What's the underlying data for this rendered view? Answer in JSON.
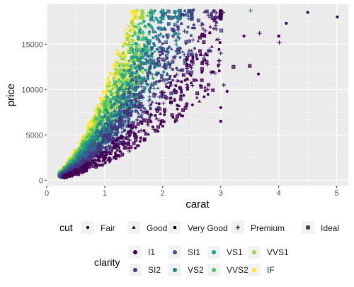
{
  "chart_data": {
    "type": "scatter",
    "xlabel": "carat",
    "ylabel": "price",
    "xlim": [
      0,
      5.2
    ],
    "ylim": [
      -600,
      19400
    ],
    "x_ticks": [
      0,
      1,
      2,
      3,
      4,
      5
    ],
    "y_ticks": [
      0,
      5000,
      10000,
      15000
    ],
    "grid": true,
    "legend_position": "bottom",
    "legends": {
      "shape": {
        "title": "cut",
        "entries": [
          {
            "label": "Fair",
            "shape": "circle"
          },
          {
            "label": "Good",
            "shape": "triangle"
          },
          {
            "label": "Very Good",
            "shape": "square"
          },
          {
            "label": "Premium",
            "shape": "plus"
          },
          {
            "label": "Ideal",
            "shape": "boxed-x"
          }
        ]
      },
      "color": {
        "title": "clarity",
        "entries": [
          {
            "label": "I1",
            "color": "#440154"
          },
          {
            "label": "SI2",
            "color": "#46337E"
          },
          {
            "label": "SI1",
            "color": "#365C8D"
          },
          {
            "label": "VS2",
            "color": "#277F8E"
          },
          {
            "label": "VS1",
            "color": "#1FA187"
          },
          {
            "label": "VVS2",
            "color": "#4AC16D"
          },
          {
            "label": "VVS1",
            "color": "#9FDA3A"
          },
          {
            "label": "IF",
            "color": "#FDE725"
          }
        ]
      }
    },
    "clarity_bands": [
      {
        "clarity": "IF",
        "exponent": 1.6,
        "k": 7800,
        "xmin": 0.23,
        "xmax": 1.52
      },
      {
        "clarity": "VVS1",
        "exponent": 1.6,
        "k": 7100,
        "xmin": 0.23,
        "xmax": 1.65
      },
      {
        "clarity": "VVS2",
        "exponent": 1.6,
        "k": 6500,
        "xmin": 0.23,
        "xmax": 1.8
      },
      {
        "clarity": "VS1",
        "exponent": 1.6,
        "k": 5800,
        "xmin": 0.23,
        "xmax": 2.0
      },
      {
        "clarity": "VS2",
        "exponent": 1.6,
        "k": 5200,
        "xmin": 0.23,
        "xmax": 2.3
      },
      {
        "clarity": "SI1",
        "exponent": 1.6,
        "k": 4500,
        "xmin": 0.23,
        "xmax": 2.5
      },
      {
        "clarity": "SI2",
        "exponent": 1.6,
        "k": 3700,
        "xmin": 0.25,
        "xmax": 3.0
      },
      {
        "clarity": "I1",
        "exponent": 1.6,
        "k": 2500,
        "xmin": 0.3,
        "xmax": 3.0
      }
    ],
    "highlighted_points": [
      {
        "x": 5.01,
        "y": 18000,
        "cut": "Fair",
        "clarity": "I1"
      },
      {
        "x": 4.5,
        "y": 18500,
        "cut": "Fair",
        "clarity": "I1"
      },
      {
        "x": 4.13,
        "y": 17300,
        "cut": "Fair",
        "clarity": "I1"
      },
      {
        "x": 4.01,
        "y": 15200,
        "cut": "Premium",
        "clarity": "I1"
      },
      {
        "x": 4.0,
        "y": 15900,
        "cut": "Very Good",
        "clarity": "I1"
      },
      {
        "x": 3.67,
        "y": 16200,
        "cut": "Premium",
        "clarity": "I1"
      },
      {
        "x": 3.65,
        "y": 11700,
        "cut": "Fair",
        "clarity": "I1"
      },
      {
        "x": 3.51,
        "y": 18700,
        "cut": "Premium",
        "clarity": "VS2"
      },
      {
        "x": 3.5,
        "y": 12600,
        "cut": "Ideal",
        "clarity": "I1"
      },
      {
        "x": 3.4,
        "y": 15900,
        "cut": "Fair",
        "clarity": "I1"
      },
      {
        "x": 3.22,
        "y": 12500,
        "cut": "Ideal",
        "clarity": "I1"
      },
      {
        "x": 3.11,
        "y": 9800,
        "cut": "Fair",
        "clarity": "I1"
      },
      {
        "x": 3.05,
        "y": 10500,
        "cut": "Premium",
        "clarity": "I1"
      },
      {
        "x": 3.04,
        "y": 18500,
        "cut": "Premium",
        "clarity": "SI2"
      },
      {
        "x": 3.0,
        "y": 6500,
        "cut": "Very Good",
        "clarity": "I1"
      },
      {
        "x": 3.0,
        "y": 8000,
        "cut": "Fair",
        "clarity": "I1"
      },
      {
        "x": 3.01,
        "y": 16500,
        "cut": "Ideal",
        "clarity": "SI2"
      },
      {
        "x": 3.0,
        "y": 14000,
        "cut": "Premium",
        "clarity": "SI2"
      },
      {
        "x": 2.9,
        "y": 11800,
        "cut": "Premium",
        "clarity": "SI2"
      },
      {
        "x": 2.8,
        "y": 14400,
        "cut": "Premium",
        "clarity": "SI1"
      }
    ]
  }
}
